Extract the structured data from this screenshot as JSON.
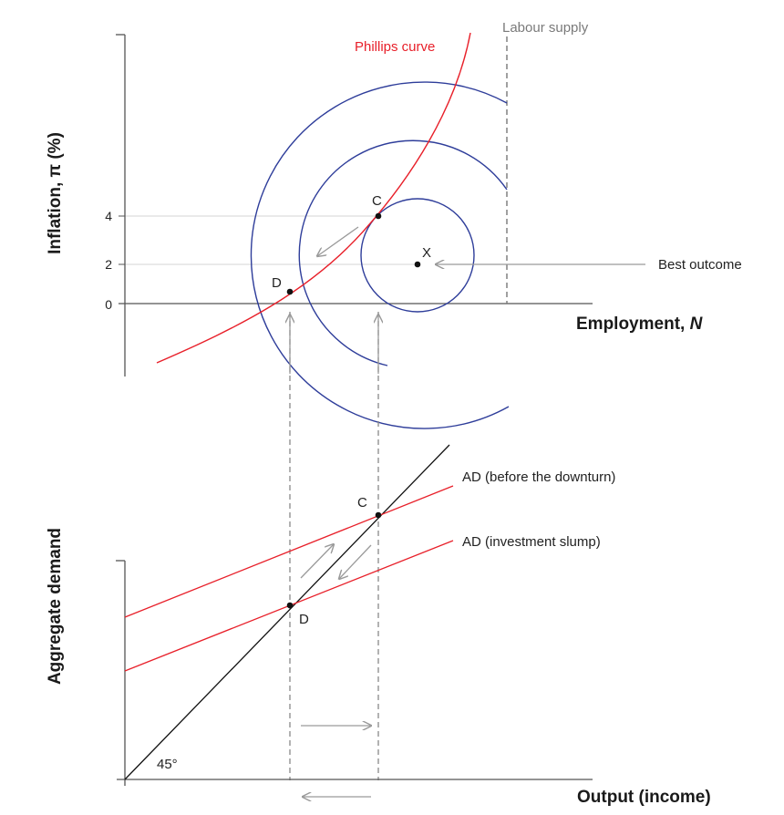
{
  "colors": {
    "phillips": "#e8202a",
    "indifference": "#2e3d9a",
    "axis": "#555555",
    "guide": "#bfbfbf",
    "arrow": "#9a9a9a",
    "dashed": "#888888",
    "ad_line": "#e8202a",
    "diag": "#111111",
    "labour_label": "#7a7a7a"
  },
  "upper": {
    "y_axis_label": "Inflation, π (%)",
    "x_axis_label_text": "Employment, ",
    "x_axis_label_var": "N",
    "y_ticks": [
      "4",
      "2",
      "0"
    ],
    "phillips_label": "Phillips curve",
    "labour_supply_label": "Labour supply",
    "best_outcome_label": "Best outcome",
    "points": {
      "c": "C",
      "d": "D",
      "x": "X"
    }
  },
  "lower": {
    "y_axis_label": "Aggregate demand",
    "x_axis_label": "Output (income)",
    "angle_label": "45°",
    "ad_before_label": "AD (before the downturn)",
    "ad_slump_label": "AD (investment slump)",
    "points": {
      "c": "C",
      "d": "D"
    }
  }
}
